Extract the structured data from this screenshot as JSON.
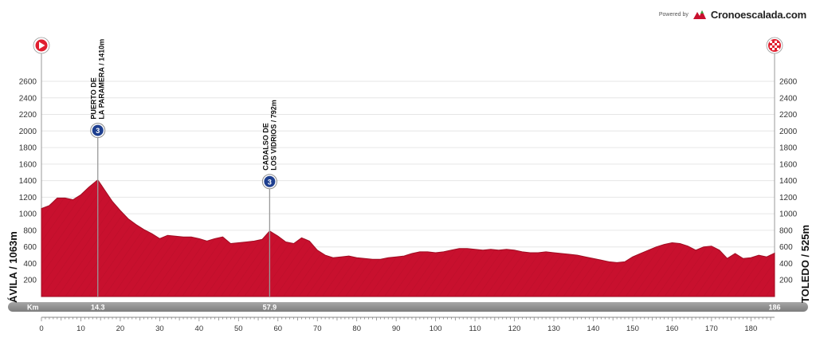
{
  "brand": {
    "powered_by": "Powered by",
    "name": "Cronoescalada.com"
  },
  "start_label": "ÁVILA / 1063m",
  "finish_label": "TOLEDO / 525m",
  "km_bar": {
    "label": "Km",
    "marks": [
      {
        "km": 14.3,
        "text": "14.3"
      },
      {
        "km": 57.9,
        "text": "57.9"
      },
      {
        "km": 186,
        "text": "186"
      }
    ]
  },
  "climbs": [
    {
      "km": 14.3,
      "alt": 1410,
      "line1": "PUERTO DE",
      "line2": "LA PARAMERA / 1410m",
      "category": "3"
    },
    {
      "km": 57.9,
      "alt": 792,
      "line1": "CADALSO DE",
      "line2": "LOS VIDRIOS / 792m",
      "category": "3"
    }
  ],
  "colors": {
    "fill": "#c8102e",
    "fill_dark": "#9e0d22",
    "grid": "#e6e6e6",
    "bar": "#8f8f8f",
    "climb_icon": "#1e3f8f"
  },
  "icons": {
    "start": "play-icon",
    "finish": "checkered-flag-icon"
  },
  "chart_data": {
    "type": "area",
    "xlabel": "Km",
    "ylabel": "",
    "xlim": [
      0,
      186
    ],
    "ylim": [
      0,
      2600
    ],
    "xticks": [
      0,
      10,
      20,
      30,
      40,
      50,
      60,
      70,
      80,
      90,
      100,
      110,
      120,
      130,
      140,
      150,
      160,
      170,
      180
    ],
    "yticks": [
      200,
      400,
      600,
      800,
      1000,
      1200,
      1400,
      1600,
      1800,
      2000,
      2200,
      2400,
      2600
    ],
    "grid": true,
    "series": [
      {
        "x": [
          0,
          2,
          4,
          6,
          8,
          10,
          12,
          14.3,
          16,
          18,
          20,
          22,
          24,
          26,
          28,
          30,
          32,
          34,
          36,
          38,
          40,
          42,
          44,
          46,
          48,
          50,
          52,
          54,
          56,
          57.9,
          60,
          62,
          64,
          66,
          68,
          70,
          72,
          74,
          76,
          78,
          80,
          82,
          84,
          86,
          88,
          90,
          92,
          94,
          96,
          98,
          100,
          102,
          104,
          106,
          108,
          110,
          112,
          114,
          116,
          118,
          120,
          122,
          124,
          126,
          128,
          130,
          132,
          134,
          136,
          138,
          140,
          142,
          144,
          146,
          148,
          150,
          152,
          154,
          156,
          158,
          160,
          162,
          164,
          166,
          168,
          170,
          172,
          174,
          176,
          178,
          180,
          182,
          184,
          186
        ],
        "y": [
          1063,
          1100,
          1190,
          1190,
          1170,
          1230,
          1320,
          1410,
          1290,
          1150,
          1040,
          940,
          870,
          810,
          760,
          700,
          740,
          730,
          720,
          720,
          700,
          670,
          700,
          720,
          640,
          650,
          660,
          670,
          690,
          792,
          730,
          660,
          640,
          710,
          670,
          560,
          500,
          470,
          480,
          490,
          470,
          460,
          450,
          450,
          470,
          480,
          490,
          520,
          540,
          540,
          530,
          540,
          560,
          580,
          580,
          570,
          560,
          570,
          560,
          570,
          560,
          540,
          530,
          530,
          540,
          530,
          520,
          510,
          500,
          480,
          460,
          440,
          420,
          410,
          420,
          480,
          520,
          560,
          600,
          630,
          650,
          640,
          610,
          560,
          600,
          610,
          560,
          460,
          520,
          460,
          470,
          500,
          480,
          525
        ]
      }
    ]
  }
}
